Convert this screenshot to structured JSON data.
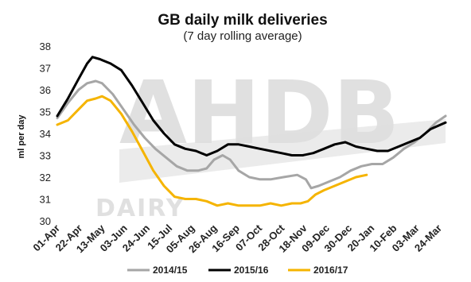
{
  "chart_data": {
    "type": "line",
    "title": "GB daily milk deliveries",
    "subtitle": "(7 day rolling average)",
    "ylabel": "ml per day",
    "xlabel": "",
    "ylim": [
      30,
      38
    ],
    "yticks": [
      30,
      31,
      32,
      33,
      34,
      35,
      36,
      37,
      38
    ],
    "xtick_labels": [
      "01-Apr",
      "22-Apr",
      "13-May",
      "03-Jun",
      "24-Jun",
      "15-Jul",
      "05-Aug",
      "26-Aug",
      "16-Sep",
      "07-Oct",
      "28-Oct",
      "18-Nov",
      "09-Dec",
      "30-Dec",
      "20-Jan",
      "10-Feb",
      "03-Mar",
      "24-Mar"
    ],
    "x_range_days": [
      0,
      364
    ],
    "grid": false,
    "legend_position": "bottom",
    "watermark": {
      "main": "AHDB",
      "sub": "DAIRY"
    },
    "series": [
      {
        "name": "2014/15",
        "color": "#a6a6a6",
        "points": [
          [
            0,
            34.7
          ],
          [
            10,
            35.4
          ],
          [
            20,
            36.0
          ],
          [
            28,
            36.3
          ],
          [
            36,
            36.4
          ],
          [
            42,
            36.3
          ],
          [
            52,
            35.8
          ],
          [
            62,
            35.1
          ],
          [
            72,
            34.4
          ],
          [
            82,
            33.8
          ],
          [
            92,
            33.3
          ],
          [
            102,
            32.9
          ],
          [
            112,
            32.5
          ],
          [
            122,
            32.3
          ],
          [
            132,
            32.3
          ],
          [
            140,
            32.4
          ],
          [
            147,
            32.8
          ],
          [
            155,
            33.0
          ],
          [
            162,
            32.8
          ],
          [
            170,
            32.3
          ],
          [
            180,
            32.0
          ],
          [
            190,
            31.9
          ],
          [
            200,
            31.9
          ],
          [
            212,
            32.0
          ],
          [
            225,
            32.1
          ],
          [
            233,
            31.9
          ],
          [
            238,
            31.5
          ],
          [
            245,
            31.6
          ],
          [
            255,
            31.8
          ],
          [
            265,
            32.0
          ],
          [
            275,
            32.3
          ],
          [
            285,
            32.5
          ],
          [
            295,
            32.6
          ],
          [
            305,
            32.6
          ],
          [
            315,
            32.9
          ],
          [
            325,
            33.3
          ],
          [
            335,
            33.6
          ],
          [
            345,
            34.0
          ],
          [
            355,
            34.5
          ],
          [
            364,
            34.8
          ]
        ]
      },
      {
        "name": "2015/16",
        "color": "#000000",
        "points": [
          [
            0,
            34.8
          ],
          [
            10,
            35.6
          ],
          [
            20,
            36.5
          ],
          [
            28,
            37.2
          ],
          [
            33,
            37.5
          ],
          [
            40,
            37.4
          ],
          [
            50,
            37.2
          ],
          [
            60,
            36.9
          ],
          [
            70,
            36.2
          ],
          [
            80,
            35.4
          ],
          [
            90,
            34.6
          ],
          [
            100,
            34.0
          ],
          [
            110,
            33.5
          ],
          [
            120,
            33.3
          ],
          [
            130,
            33.2
          ],
          [
            140,
            33.0
          ],
          [
            150,
            33.2
          ],
          [
            160,
            33.5
          ],
          [
            170,
            33.5
          ],
          [
            180,
            33.4
          ],
          [
            190,
            33.3
          ],
          [
            200,
            33.2
          ],
          [
            210,
            33.1
          ],
          [
            220,
            33.0
          ],
          [
            230,
            33.0
          ],
          [
            240,
            33.1
          ],
          [
            250,
            33.3
          ],
          [
            260,
            33.5
          ],
          [
            270,
            33.6
          ],
          [
            280,
            33.4
          ],
          [
            290,
            33.3
          ],
          [
            300,
            33.2
          ],
          [
            310,
            33.2
          ],
          [
            320,
            33.4
          ],
          [
            330,
            33.6
          ],
          [
            340,
            33.8
          ],
          [
            350,
            34.2
          ],
          [
            364,
            34.5
          ]
        ]
      },
      {
        "name": "2016/17",
        "color": "#f5b400",
        "points": [
          [
            0,
            34.4
          ],
          [
            10,
            34.6
          ],
          [
            20,
            35.1
          ],
          [
            28,
            35.5
          ],
          [
            36,
            35.6
          ],
          [
            42,
            35.7
          ],
          [
            50,
            35.5
          ],
          [
            60,
            34.9
          ],
          [
            70,
            34.1
          ],
          [
            80,
            33.2
          ],
          [
            90,
            32.3
          ],
          [
            100,
            31.6
          ],
          [
            110,
            31.1
          ],
          [
            120,
            31.0
          ],
          [
            130,
            31.0
          ],
          [
            140,
            30.9
          ],
          [
            150,
            30.7
          ],
          [
            160,
            30.8
          ],
          [
            170,
            30.7
          ],
          [
            180,
            30.7
          ],
          [
            190,
            30.7
          ],
          [
            200,
            30.8
          ],
          [
            210,
            30.7
          ],
          [
            220,
            30.8
          ],
          [
            228,
            30.8
          ],
          [
            235,
            30.9
          ],
          [
            242,
            31.2
          ],
          [
            250,
            31.4
          ],
          [
            260,
            31.6
          ],
          [
            270,
            31.8
          ],
          [
            280,
            32.0
          ],
          [
            290,
            32.1
          ]
        ]
      }
    ]
  }
}
